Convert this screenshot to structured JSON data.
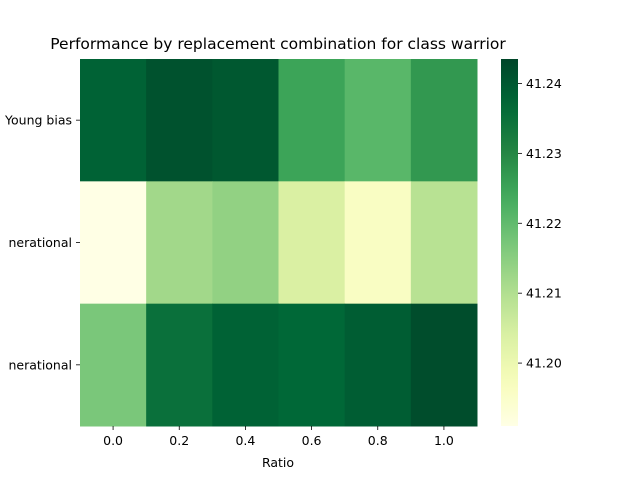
{
  "chart_data": {
    "type": "heatmap",
    "title": "Performance by replacement combination for class warrior",
    "xlabel": "Ratio",
    "ylabel": "",
    "x_categories": [
      "0.0",
      "0.2",
      "0.4",
      "0.6",
      "0.8",
      "1.0"
    ],
    "y_categories": [
      "Young bias",
      "nerational",
      "nerational"
    ],
    "values": [
      [
        41.238,
        41.241,
        41.24,
        41.225,
        41.221,
        41.227
      ],
      [
        41.191,
        41.212,
        41.214,
        41.204,
        41.196,
        41.209
      ],
      [
        41.217,
        41.235,
        41.238,
        41.237,
        41.239,
        41.242
      ]
    ],
    "colorbar": {
      "vmin": 41.191,
      "vmax": 41.2435,
      "ticks": [
        "41.20",
        "41.21",
        "41.22",
        "41.23",
        "41.24"
      ],
      "tick_values": [
        41.2,
        41.21,
        41.22,
        41.23,
        41.24
      ],
      "colormap": "YlGn"
    }
  }
}
